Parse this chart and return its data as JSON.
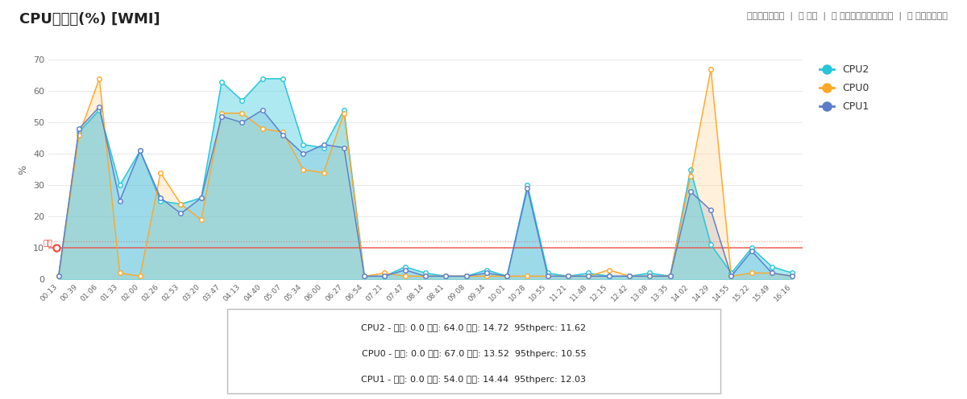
{
  "title": "CPU使用率(%) [WMI]",
  "ylabel": "%",
  "ylim": [
    0,
    70
  ],
  "threshold_solid": 10,
  "threshold_dashed": 12,
  "x_labels": [
    "00:13",
    "00:39",
    "01:06",
    "01:33",
    "02:00",
    "02:26",
    "02:53",
    "03:20",
    "03:47",
    "04:13",
    "04:40",
    "05:07",
    "05:34",
    "06:00",
    "06:27",
    "06:54",
    "07:21",
    "07:47",
    "08:14",
    "08:41",
    "09:08",
    "09:34",
    "10:01",
    "10:28",
    "10:55",
    "11:21",
    "11:48",
    "12:15",
    "12:42",
    "13:08",
    "13:35",
    "14:02",
    "14:29",
    "14:55",
    "15:22",
    "15:49",
    "16:16"
  ],
  "cpu2": [
    1,
    47,
    54,
    30,
    41,
    25,
    24,
    26,
    63,
    57,
    64,
    64,
    43,
    42,
    54,
    1,
    1,
    4,
    2,
    1,
    1,
    3,
    1,
    30,
    2,
    1,
    2,
    1,
    1,
    2,
    1,
    35,
    11,
    2,
    10,
    4,
    2
  ],
  "cpu0": [
    1,
    46,
    64,
    2,
    1,
    34,
    24,
    19,
    53,
    53,
    48,
    47,
    35,
    34,
    53,
    1,
    2,
    1,
    1,
    1,
    1,
    1,
    1,
    1,
    1,
    1,
    1,
    3,
    1,
    1,
    1,
    33,
    67,
    1,
    2,
    2,
    1
  ],
  "cpu1": [
    1,
    48,
    55,
    25,
    41,
    26,
    21,
    26,
    52,
    50,
    54,
    46,
    40,
    43,
    42,
    1,
    1,
    3,
    1,
    1,
    1,
    2,
    1,
    29,
    1,
    1,
    1,
    1,
    1,
    1,
    1,
    28,
    22,
    1,
    9,
    2,
    1
  ],
  "cpu2_color": "#26c6da",
  "cpu0_color": "#ffa726",
  "cpu1_color": "#5c7cca",
  "cpu2_fill_color": "#4dd0e1",
  "cpu0_fill_color": "#ffcc80",
  "cpu1_fill_color": "#90a4d4",
  "background_color": "#ffffff",
  "grid_color": "#e8e8e8",
  "threshold_color": "#f44336",
  "threshold_label": "閾値",
  "stats_text": [
    "CPU2 - 最小: 0.0 最大: 64.0 平均: 14.72  95thperc: 11.62",
    "CPU0 - 最小: 0.0 最大: 67.0 平均: 13.52  95thperc: 10.55",
    "CPU1 - 最小: 0.0 最大: 54.0 平均: 14.44  95thperc: 12.03"
  ],
  "header_right": "テーブルビュー  |  今日  |  スケジュールレポート  |  エクスポート"
}
